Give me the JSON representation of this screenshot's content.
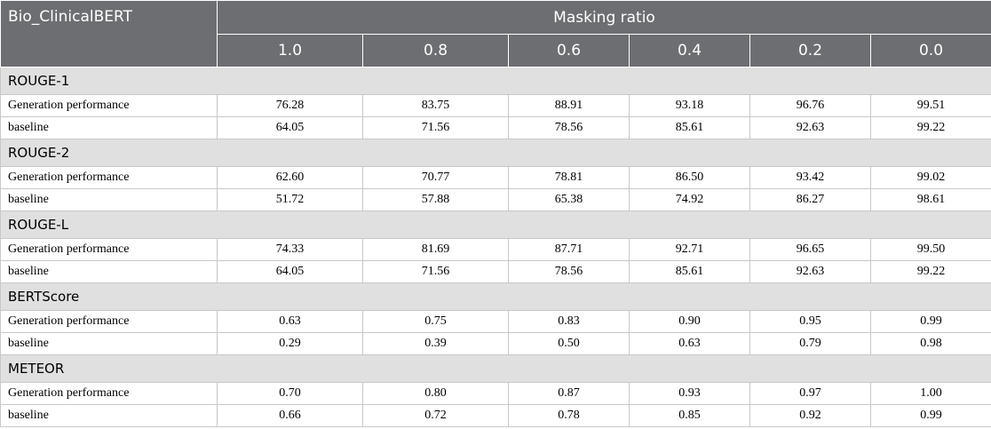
{
  "header": {
    "corner": "Bio_ClinicalBERT",
    "group": "Masking ratio",
    "columns": [
      "1.0",
      "0.8",
      "0.6",
      "0.4",
      "0.2",
      "0.0"
    ]
  },
  "sections": [
    {
      "title": "ROUGE-1",
      "rows": [
        {
          "label": "Generation performance",
          "values": [
            "76.28",
            "83.75",
            "88.91",
            "93.18",
            "96.76",
            "99.51"
          ]
        },
        {
          "label": "baseline",
          "values": [
            "64.05",
            "71.56",
            "78.56",
            "85.61",
            "92.63",
            "99.22"
          ]
        }
      ]
    },
    {
      "title": "ROUGE-2",
      "rows": [
        {
          "label": "Generation performance",
          "values": [
            "62.60",
            "70.77",
            "78.81",
            "86.50",
            "93.42",
            "99.02"
          ]
        },
        {
          "label": "baseline",
          "values": [
            "51.72",
            "57.88",
            "65.38",
            "74.92",
            "86.27",
            "98.61"
          ]
        }
      ]
    },
    {
      "title": "ROUGE-L",
      "rows": [
        {
          "label": "Generation performance",
          "values": [
            "74.33",
            "81.69",
            "87.71",
            "92.71",
            "96.65",
            "99.50"
          ]
        },
        {
          "label": "baseline",
          "values": [
            "64.05",
            "71.56",
            "78.56",
            "85.61",
            "92.63",
            "99.22"
          ]
        }
      ]
    },
    {
      "title": "BERTScore",
      "rows": [
        {
          "label": "Generation performance",
          "values": [
            "0.63",
            "0.75",
            "0.83",
            "0.90",
            "0.95",
            "0.99"
          ]
        },
        {
          "label": "baseline",
          "values": [
            "0.29",
            "0.39",
            "0.50",
            "0.63",
            "0.79",
            "0.98"
          ]
        }
      ]
    },
    {
      "title": "METEOR",
      "rows": [
        {
          "label": "Generation performance",
          "values": [
            "0.70",
            "0.80",
            "0.87",
            "0.93",
            "0.97",
            "1.00"
          ]
        },
        {
          "label": "baseline",
          "values": [
            "0.66",
            "0.72",
            "0.78",
            "0.85",
            "0.92",
            "0.99"
          ]
        }
      ]
    }
  ]
}
